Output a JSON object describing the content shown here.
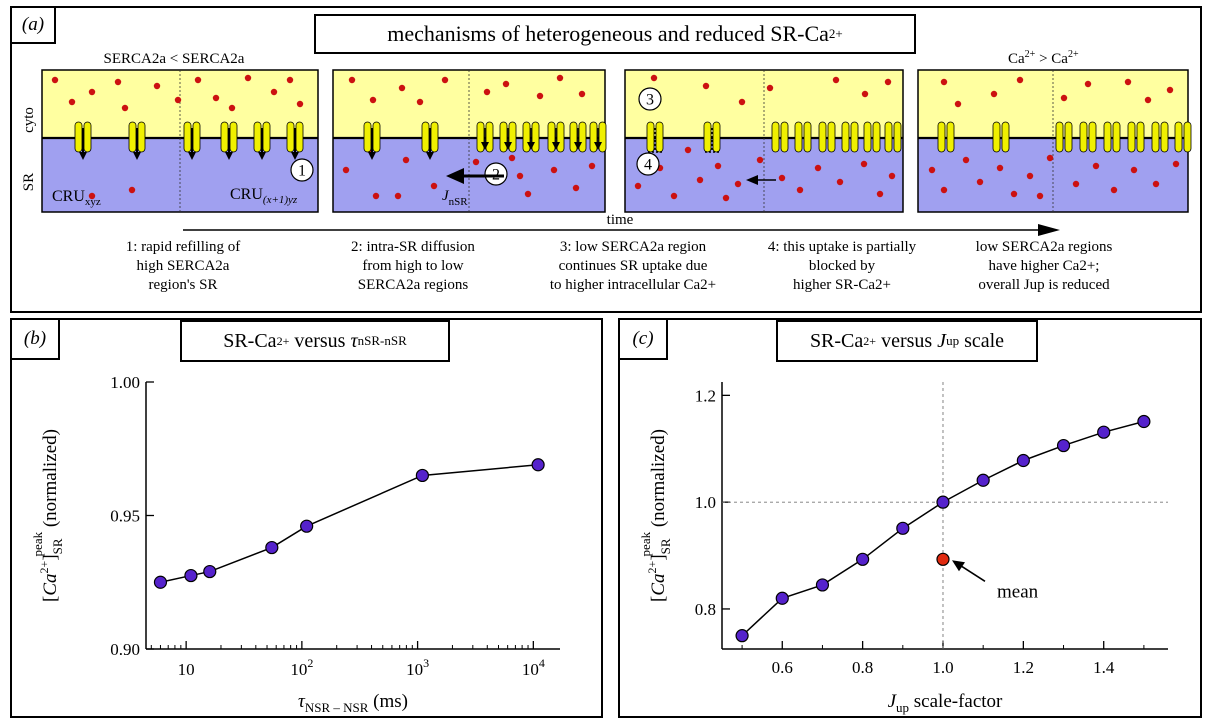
{
  "panel_a": {
    "label": "(a)",
    "title": "mechanisms of heterogeneous and reduced SR-Ca",
    "title_sup": "2+",
    "side_cyto": "cyto",
    "side_sr": "SR",
    "top_left_note": "SERCA2a < SERCA2a",
    "top_right_note_a": "Ca",
    "top_right_note_sup": "2+",
    "top_right_note_b": " > Ca",
    "top_right_note_sup2": "2+",
    "cru_left": "CRU",
    "cru_left_sub": "xyz",
    "cru_right": "CRU",
    "cru_right_sub": "(x+1)yz",
    "jnsr": "J",
    "jnsr_sub": "nSR",
    "markers": [
      "1",
      "2",
      "3",
      "4"
    ],
    "time_label": "time",
    "captions": [
      {
        "l1": "1: rapid refilling of",
        "l2": "high SERCA2a",
        "l3": "region's SR"
      },
      {
        "l1": "2: intra-SR diffusion",
        "l2": "from high to low",
        "l3": "SERCA2a regions"
      },
      {
        "l1": "3: low SERCA2a region",
        "l2": "continues SR uptake due",
        "l3": "to higher intracellular Ca2+"
      },
      {
        "l1": "4: this uptake is partially",
        "l2": "blocked by",
        "l3": "higher SR-Ca2+"
      },
      {
        "l1": "low SERCA2a regions",
        "l2": "have higher Ca2+;",
        "l3": "overall Jup is reduced"
      }
    ],
    "colors": {
      "cyto": "#ffffa0",
      "sr": "#a0a0f0",
      "pump": "#f0f000",
      "ion": "#cc1111"
    }
  },
  "panel_b": {
    "label": "(b)",
    "title_a": "SR-Ca",
    "title_sup": "2+",
    "title_b": " versus ",
    "title_tau": "τ",
    "title_tau_sub": "nSR-nSR",
    "ylabel": "[Ca2+]SR peak (normalized)",
    "xlabel": "τNSR – NSR (ms)",
    "xticks": [
      "10",
      "10²",
      "10³",
      "10⁴"
    ],
    "yticks": [
      "0.90",
      "0.95",
      "1.00"
    ]
  },
  "panel_c": {
    "label": "(c)",
    "title_a": "SR-Ca",
    "title_sup": "2+",
    "title_b": " versus ",
    "title_j": "J",
    "title_j_sub": "up",
    "title_c": " scale",
    "ylabel": "[Ca2+]SR peak (normalized)",
    "xlabel": "Jup scale-factor",
    "xticks": [
      "0.6",
      "0.8",
      "1.0",
      "1.2",
      "1.4"
    ],
    "yticks": [
      "0.8",
      "1.0",
      "1.2"
    ],
    "annotation": "mean"
  },
  "chart_data": [
    {
      "type": "line",
      "xscale": "log",
      "x": [
        6,
        11,
        16,
        55,
        110,
        1100,
        11000
      ],
      "values": [
        0.925,
        0.9275,
        0.929,
        0.938,
        0.946,
        0.965,
        0.969
      ],
      "ylim": [
        0.9,
        1.0
      ],
      "xlim": [
        4.5,
        17000
      ],
      "color_marker": "#5522cc"
    },
    {
      "type": "scatter",
      "x": [
        0.5,
        0.6,
        0.7,
        0.8,
        0.9,
        1.0,
        1.1,
        1.2,
        1.3,
        1.4,
        1.5
      ],
      "values": [
        0.75,
        0.82,
        0.845,
        0.893,
        0.951,
        1.0,
        1.041,
        1.078,
        1.106,
        1.131,
        1.151
      ],
      "mean_point": {
        "x": 1.0,
        "y": 0.893
      },
      "ylim": [
        0.725,
        1.225
      ],
      "xlim": [
        0.45,
        1.56
      ],
      "color_marker": "#5522cc",
      "color_mean": "#e02a10"
    }
  ]
}
